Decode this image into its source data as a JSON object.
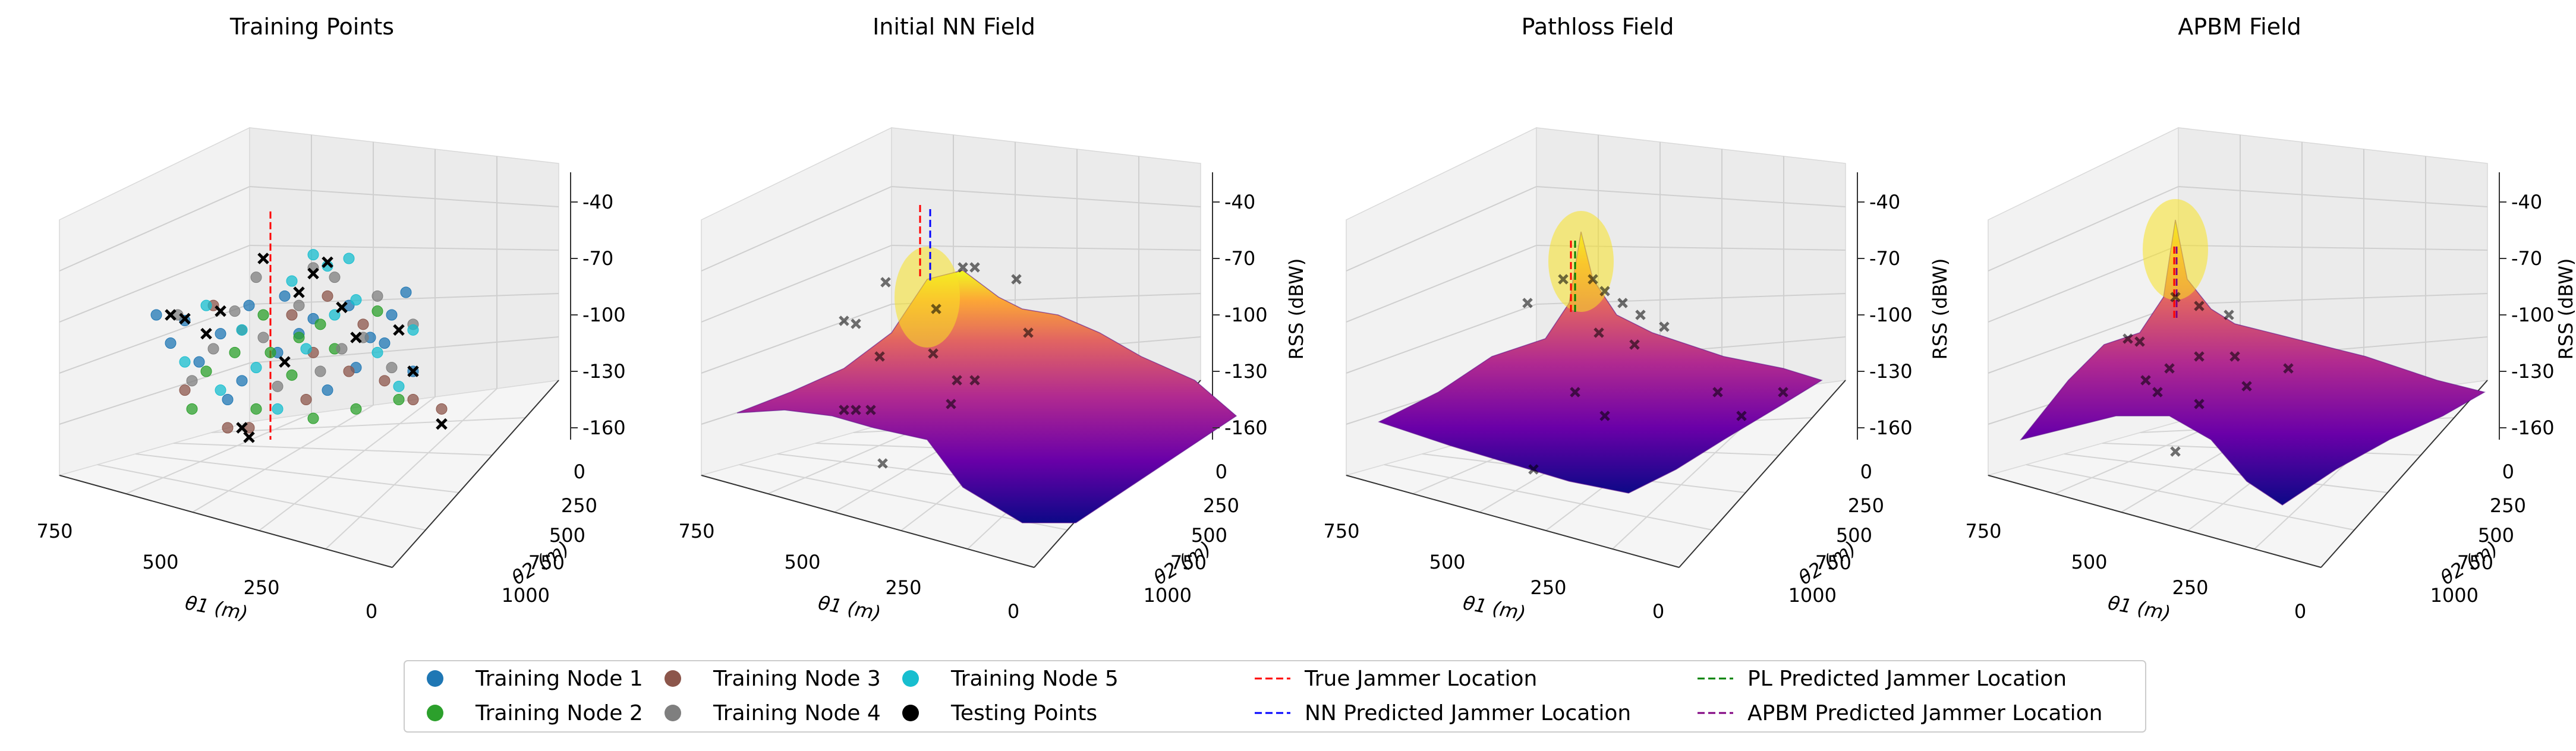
{
  "chart_data": [
    {
      "type": "scatter3d",
      "title": "Training Points",
      "xlabel": "θ1 (m)",
      "ylabel": "θ2 (m)",
      "zlabel": "",
      "x_ticks": [
        "750",
        "500",
        "250",
        "0"
      ],
      "y_ticks": [
        "0",
        "250",
        "500",
        "750",
        "1000"
      ],
      "z_ticks": [
        "-40",
        "-70",
        "-100",
        "-130",
        "-160"
      ],
      "series": [
        {
          "name": "Training Node 1",
          "color": "#1f77b4",
          "points": [
            [
              -70,
              -115
            ],
            [
              -60,
              -103
            ],
            [
              -35,
              -110
            ],
            [
              -20,
              -135
            ],
            [
              10,
              -90
            ],
            [
              30,
              -102
            ],
            [
              55,
              -95
            ],
            [
              70,
              -112
            ],
            [
              95,
              -88
            ],
            [
              100,
              -130
            ],
            [
              -50,
              -125
            ],
            [
              -15,
              -95
            ],
            [
              40,
              -140
            ],
            [
              80,
              -115
            ],
            [
              5,
              -120
            ],
            [
              -80,
              -100
            ],
            [
              60,
              -128
            ],
            [
              20,
              -110
            ],
            [
              -30,
              -145
            ],
            [
              85,
              -100
            ]
          ]
        },
        {
          "name": "Training Node 2",
          "color": "#2ca02c",
          "points": [
            [
              -55,
              -150
            ],
            [
              -10,
              -150
            ],
            [
              0,
              -120
            ],
            [
              20,
              -112
            ],
            [
              35,
              -105
            ],
            [
              60,
              -150
            ],
            [
              -45,
              -130
            ],
            [
              15,
              -132
            ],
            [
              75,
              -98
            ],
            [
              -25,
              -120
            ],
            [
              45,
              -118
            ],
            [
              90,
              -145
            ],
            [
              -5,
              -100
            ],
            [
              30,
              -155
            ]
          ]
        },
        {
          "name": "Training Node 3",
          "color": "#8c564b",
          "points": [
            [
              -30,
              -160
            ],
            [
              -15,
              -160
            ],
            [
              25,
              -145
            ],
            [
              55,
              -130
            ],
            [
              120,
              -150
            ],
            [
              15,
              -100
            ],
            [
              -60,
              -140
            ],
            [
              40,
              -90
            ],
            [
              80,
              -135
            ],
            [
              -20,
              -108
            ],
            [
              65,
              -105
            ],
            [
              100,
              -145
            ],
            [
              -40,
              -95
            ],
            [
              30,
              -120
            ]
          ]
        },
        {
          "name": "Training Node 4",
          "color": "#7f7f7f",
          "points": [
            [
              -65,
              -100
            ],
            [
              -40,
              -118
            ],
            [
              -10,
              -80
            ],
            [
              20,
              -95
            ],
            [
              45,
              -80
            ],
            [
              75,
              -90
            ],
            [
              -55,
              -135
            ],
            [
              5,
              -138
            ],
            [
              50,
              -118
            ],
            [
              85,
              -128
            ],
            [
              -25,
              -98
            ],
            [
              30,
              -75
            ],
            [
              65,
              -112
            ],
            [
              100,
              -105
            ],
            [
              -5,
              -112
            ],
            [
              35,
              -130
            ]
          ]
        },
        {
          "name": "Training Node 5",
          "color": "#17becf",
          "points": [
            [
              -60,
              -125
            ],
            [
              -20,
              -108
            ],
            [
              15,
              -82
            ],
            [
              30,
              -68
            ],
            [
              40,
              -74
            ],
            [
              55,
              -70
            ],
            [
              75,
              -120
            ],
            [
              100,
              -108
            ],
            [
              -45,
              -95
            ],
            [
              5,
              -150
            ],
            [
              60,
              -92
            ],
            [
              -10,
              -128
            ],
            [
              90,
              -138
            ],
            [
              25,
              -118
            ],
            [
              -35,
              -140
            ],
            [
              45,
              -100
            ]
          ]
        },
        {
          "name": "Testing Points",
          "color": "#000000",
          "points": [
            [
              -70,
              -100
            ],
            [
              -60,
              -102
            ],
            [
              -45,
              -110
            ],
            [
              -5,
              -70
            ],
            [
              20,
              -88
            ],
            [
              30,
              -78
            ],
            [
              40,
              -72
            ],
            [
              50,
              -96
            ],
            [
              60,
              -112
            ],
            [
              90,
              -108
            ],
            [
              100,
              -130
            ],
            [
              120,
              -158
            ],
            [
              -15,
              -165
            ],
            [
              -20,
              -160
            ],
            [
              -35,
              -98
            ],
            [
              10,
              -125
            ]
          ]
        }
      ],
      "true_jammer_line": true
    },
    {
      "type": "surface3d",
      "title": "Initial NN Field",
      "xlabel": "θ1 (m)",
      "ylabel": "θ2 (m)",
      "zlabel": "RSS (dBW)",
      "x_ticks": [
        "750",
        "500",
        "250",
        "0"
      ],
      "y_ticks": [
        "0",
        "250",
        "500",
        "750",
        "1000"
      ],
      "z_ticks": [
        "-40",
        "-70",
        "-100",
        "-130",
        "-160"
      ],
      "jammer_lines": [
        "True Jammer Location",
        "NN Predicted Jammer Location"
      ]
    },
    {
      "type": "surface3d",
      "title": "Pathloss Field",
      "xlabel": "θ1 (m)",
      "ylabel": "θ2 (m)",
      "zlabel": "RSS (dBW)",
      "x_ticks": [
        "750",
        "500",
        "250",
        "0"
      ],
      "y_ticks": [
        "0",
        "250",
        "500",
        "750",
        "1000"
      ],
      "z_ticks": [
        "-40",
        "-70",
        "-100",
        "-130",
        "-160"
      ],
      "jammer_lines": [
        "True Jammer Location",
        "PL Predicted Jammer Location"
      ]
    },
    {
      "type": "surface3d",
      "title": "APBM Field",
      "xlabel": "θ1 (m)",
      "ylabel": "θ2 (m)",
      "zlabel": "RSS (dBW)",
      "x_ticks": [
        "750",
        "500",
        "250",
        "0"
      ],
      "y_ticks": [
        "0",
        "250",
        "500",
        "750",
        "1000"
      ],
      "z_ticks": [
        "-40",
        "-70",
        "-100",
        "-130",
        "-160"
      ],
      "jammer_lines": [
        "True Jammer Location",
        "APBM Predicted Jammer Location"
      ]
    }
  ],
  "legend": {
    "placement": "bottom-center",
    "entries": [
      {
        "label": "Training Node 1",
        "kind": "marker",
        "color": "#1f77b4"
      },
      {
        "label": "Training Node 2",
        "kind": "marker",
        "color": "#2ca02c"
      },
      {
        "label": "Training Node 3",
        "kind": "marker",
        "color": "#8c564b"
      },
      {
        "label": "Training Node 4",
        "kind": "marker",
        "color": "#7f7f7f"
      },
      {
        "label": "Training Node 5",
        "kind": "marker",
        "color": "#17becf"
      },
      {
        "label": "Testing Points",
        "kind": "marker",
        "color": "#000000"
      },
      {
        "label": "True Jammer Location",
        "kind": "dashed",
        "color": "#ff0000"
      },
      {
        "label": "NN Predicted Jammer Location",
        "kind": "dashed",
        "color": "#0000ff"
      },
      {
        "label": "PL Predicted Jammer Location",
        "kind": "dashed",
        "color": "#008000"
      },
      {
        "label": "APBM Predicted Jammer Location",
        "kind": "dashed",
        "color": "#800080"
      }
    ]
  }
}
